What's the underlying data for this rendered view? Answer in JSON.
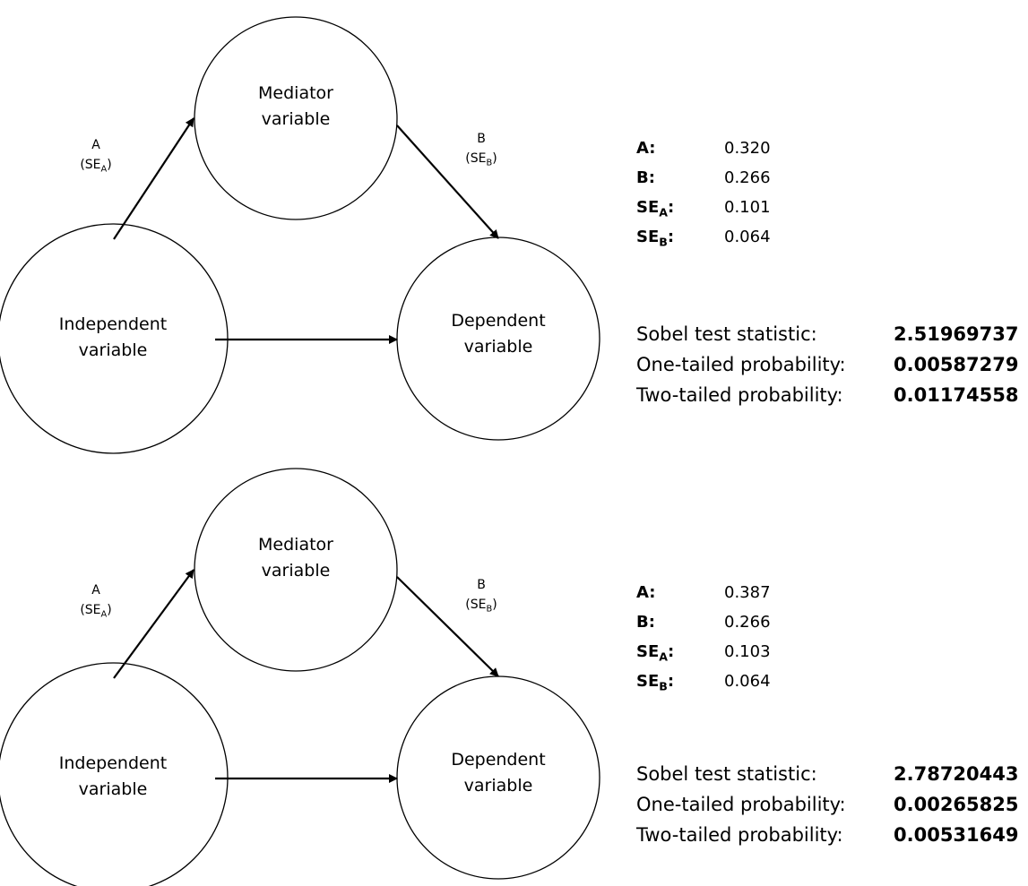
{
  "diagrams": [
    {
      "nodes": {
        "mediator": [
          "Mediator",
          "variable"
        ],
        "independent": [
          "Independent",
          "variable"
        ],
        "dependent": [
          "Dependent",
          "variable"
        ]
      },
      "path_a": {
        "label": "A",
        "se": "SE",
        "se_sub": "A"
      },
      "path_b": {
        "label": "B",
        "se": "SE",
        "se_sub": "B"
      },
      "params": [
        {
          "key": "A:",
          "value": "0.320"
        },
        {
          "key": "B:",
          "value": "0.266"
        },
        {
          "key": "SE",
          "sub": "A",
          "suffix": ":",
          "value": "0.101"
        },
        {
          "key": "SE",
          "sub": "B",
          "suffix": ":",
          "value": "0.064"
        }
      ],
      "stats": [
        {
          "label": "Sobel test statistic:",
          "value": "2.51969737"
        },
        {
          "label": "One-tailed probability:",
          "value": "0.00587279"
        },
        {
          "label": "Two-tailed probability:",
          "value": "0.01174558"
        }
      ]
    },
    {
      "nodes": {
        "mediator": [
          "Mediator",
          "variable"
        ],
        "independent": [
          "Independent",
          "variable"
        ],
        "dependent": [
          "Dependent",
          "variable"
        ]
      },
      "path_a": {
        "label": "A",
        "se": "SE",
        "se_sub": "A"
      },
      "path_b": {
        "label": "B",
        "se": "SE",
        "se_sub": "B"
      },
      "params": [
        {
          "key": "A:",
          "value": "0.387"
        },
        {
          "key": "B:",
          "value": "0.266"
        },
        {
          "key": "SE",
          "sub": "A",
          "suffix": ":",
          "value": "0.103"
        },
        {
          "key": "SE",
          "sub": "B",
          "suffix": ":",
          "value": "0.064"
        }
      ],
      "stats": [
        {
          "label": "Sobel test statistic:",
          "value": "2.78720443"
        },
        {
          "label": "One-tailed probability:",
          "value": "0.00265825"
        },
        {
          "label": "Two-tailed probability:",
          "value": "0.00531649"
        }
      ]
    }
  ]
}
